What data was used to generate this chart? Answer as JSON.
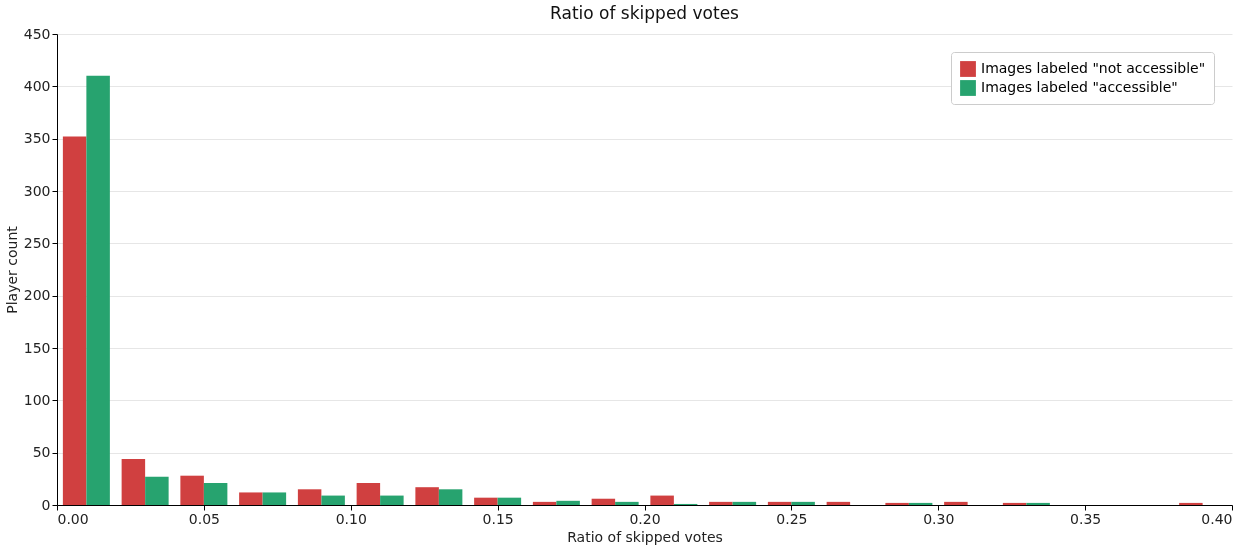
{
  "chart_data": {
    "type": "histogram",
    "title": "Ratio of skipped votes",
    "xlabel": "Ratio of skipped votes",
    "ylabel": "Player count",
    "bins": [
      0,
      0.02,
      0.04,
      0.06,
      0.08,
      0.1,
      0.12,
      0.14,
      0.16,
      0.18,
      0.2,
      0.22,
      0.24,
      0.26,
      0.28,
      0.3,
      0.32,
      0.34,
      0.36,
      0.38,
      0.4
    ],
    "series": [
      {
        "name": "Images labeled \"not accessible\"",
        "color": "#d04040",
        "values": [
          352,
          44,
          28,
          12,
          15,
          21,
          17,
          7,
          3,
          6,
          9,
          3,
          3,
          3,
          2,
          3,
          2,
          0,
          0,
          2
        ]
      },
      {
        "name": "Images labeled \"accessible\"",
        "color": "#27a36f",
        "values": [
          410,
          27,
          21,
          12,
          9,
          9,
          15,
          7,
          4,
          3,
          1,
          3,
          3,
          0,
          2,
          0,
          2,
          0,
          0,
          0
        ]
      }
    ],
    "xlim": [
      0,
      0.4
    ],
    "xticks": [
      {
        "value": 0,
        "label": "0.00"
      },
      {
        "value": 0.05,
        "label": "0.05"
      },
      {
        "value": 0.1,
        "label": "0.10"
      },
      {
        "value": 0.15,
        "label": "0.15"
      },
      {
        "value": 0.2,
        "label": "0.20"
      },
      {
        "value": 0.25,
        "label": "0.25"
      },
      {
        "value": 0.3,
        "label": "0.30"
      },
      {
        "value": 0.35,
        "label": "0.35"
      },
      {
        "value": 0.4,
        "label": "0.40"
      }
    ],
    "ylim": [
      0,
      450
    ],
    "yticks": [
      0,
      50,
      100,
      150,
      200,
      250,
      300,
      350,
      400,
      450
    ],
    "grid": "y",
    "legend": "top right"
  }
}
